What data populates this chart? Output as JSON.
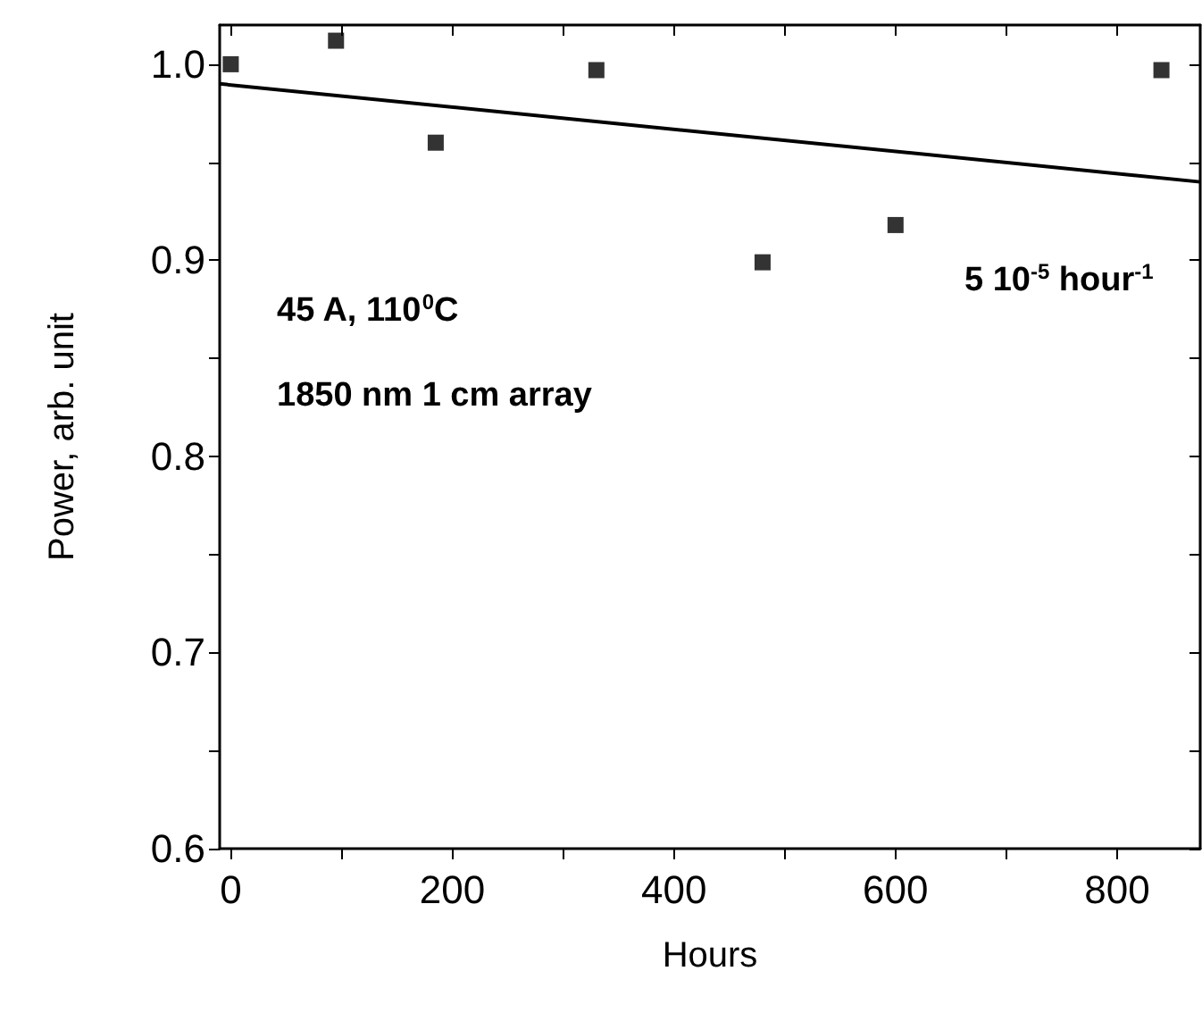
{
  "chart_data": {
    "type": "scatter",
    "xlabel": "Hours",
    "ylabel": "Power, arb. unit",
    "x": [
      0,
      95,
      185,
      330,
      480,
      600,
      840
    ],
    "series": [
      {
        "color": "#000000",
        "marker": "square",
        "values": [
          1.0,
          1.012,
          0.96,
          0.997,
          0.899,
          0.918,
          0.997
        ]
      },
      {
        "type": "line",
        "color": "#000000",
        "marker": "none",
        "line_style": "solid",
        "x": [
          -10,
          875
        ],
        "values": [
          0.99,
          0.94
        ]
      }
    ],
    "xlim": [
      -10,
      875
    ],
    "ylim": [
      0.6,
      1.02
    ],
    "xticks": [
      0,
      200,
      400,
      600,
      800
    ],
    "yticks": [
      {
        "value": 0.6,
        "label": "0.6"
      },
      {
        "value": 0.7,
        "label": "0.7"
      },
      {
        "value": 0.8,
        "label": "0.8"
      },
      {
        "value": 0.9,
        "label": "0.9"
      },
      {
        "value": 1.0,
        "label": "1.0"
      }
    ],
    "annotations": [
      "45 A, 110$^{0}$C",
      "1850 nm 1 cm array",
      "5 10$^{-5}$ hour$^{-1}$"
    ],
    "grid": false
  }
}
